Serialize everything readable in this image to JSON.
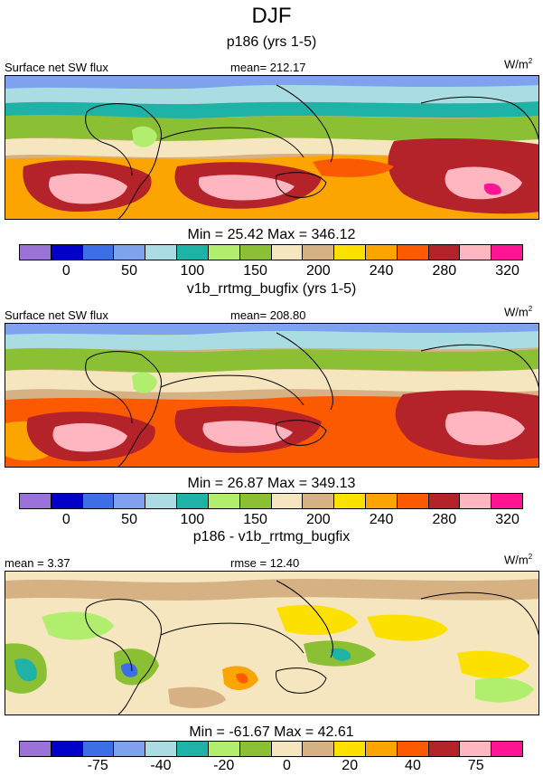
{
  "figure": {
    "title": "DJF"
  },
  "chart_data": [
    {
      "type": "heatmap",
      "panel_title": "p186 (yrs 1-5)",
      "left_label": "Surface net SW flux",
      "center_label": "mean= 212.17",
      "units_base": "W/m",
      "units_sup": "2",
      "stats": "Min =  25.42 Max = 346.12",
      "colorbar": {
        "colors": [
          "#9b72d8",
          "#0000c8",
          "#3c6ee6",
          "#7fa2ee",
          "#a9dde3",
          "#1fb2a6",
          "#b1ee6e",
          "#8cc034",
          "#f5e6c0",
          "#d6b184",
          "#fce100",
          "#fca400",
          "#fc5a00",
          "#b4232a",
          "#ffb6c1",
          "#ff1493"
        ],
        "tick_labels": [
          "0",
          "50",
          "100",
          "150",
          "200",
          "240",
          "280",
          "320"
        ]
      },
      "field_levels": [
        25,
        50,
        100,
        150,
        200,
        240,
        280,
        320,
        346
      ]
    },
    {
      "type": "heatmap",
      "panel_title": "v1b_rrtmg_bugfix (yrs 1-5)",
      "left_label": "Surface net SW flux",
      "center_label": "mean= 208.80",
      "units_base": "W/m",
      "units_sup": "2",
      "stats": "Min =  26.87 Max = 349.13",
      "colorbar": {
        "colors": [
          "#9b72d8",
          "#0000c8",
          "#3c6ee6",
          "#7fa2ee",
          "#a9dde3",
          "#1fb2a6",
          "#b1ee6e",
          "#8cc034",
          "#f5e6c0",
          "#d6b184",
          "#fce100",
          "#fca400",
          "#fc5a00",
          "#b4232a",
          "#ffb6c1",
          "#ff1493"
        ],
        "tick_labels": [
          "0",
          "50",
          "100",
          "150",
          "200",
          "240",
          "280",
          "320"
        ]
      },
      "field_levels": [
        27,
        50,
        100,
        150,
        200,
        240,
        280,
        320,
        349
      ]
    },
    {
      "type": "heatmap",
      "panel_title": "p186 - v1b_rrtmg_bugfix",
      "left_label": "mean =   3.37",
      "center_label": "rmse =  12.40",
      "units_base": "W/m",
      "units_sup": "2",
      "stats": "Min = -61.67 Max =  42.61",
      "colorbar": {
        "colors": [
          "#9b72d8",
          "#0000c8",
          "#3c6ee6",
          "#7fa2ee",
          "#a9dde3",
          "#1fb2a6",
          "#b1ee6e",
          "#8cc034",
          "#f5e6c0",
          "#d6b184",
          "#fce100",
          "#fca400",
          "#fc5a00",
          "#b4232a",
          "#ffb6c1",
          "#ff1493"
        ],
        "tick_labels": [
          "-75",
          "-40",
          "-20",
          "0",
          "20",
          "40",
          "75"
        ]
      },
      "field_levels": [
        -62,
        -40,
        -20,
        0,
        20,
        40,
        43
      ]
    }
  ]
}
